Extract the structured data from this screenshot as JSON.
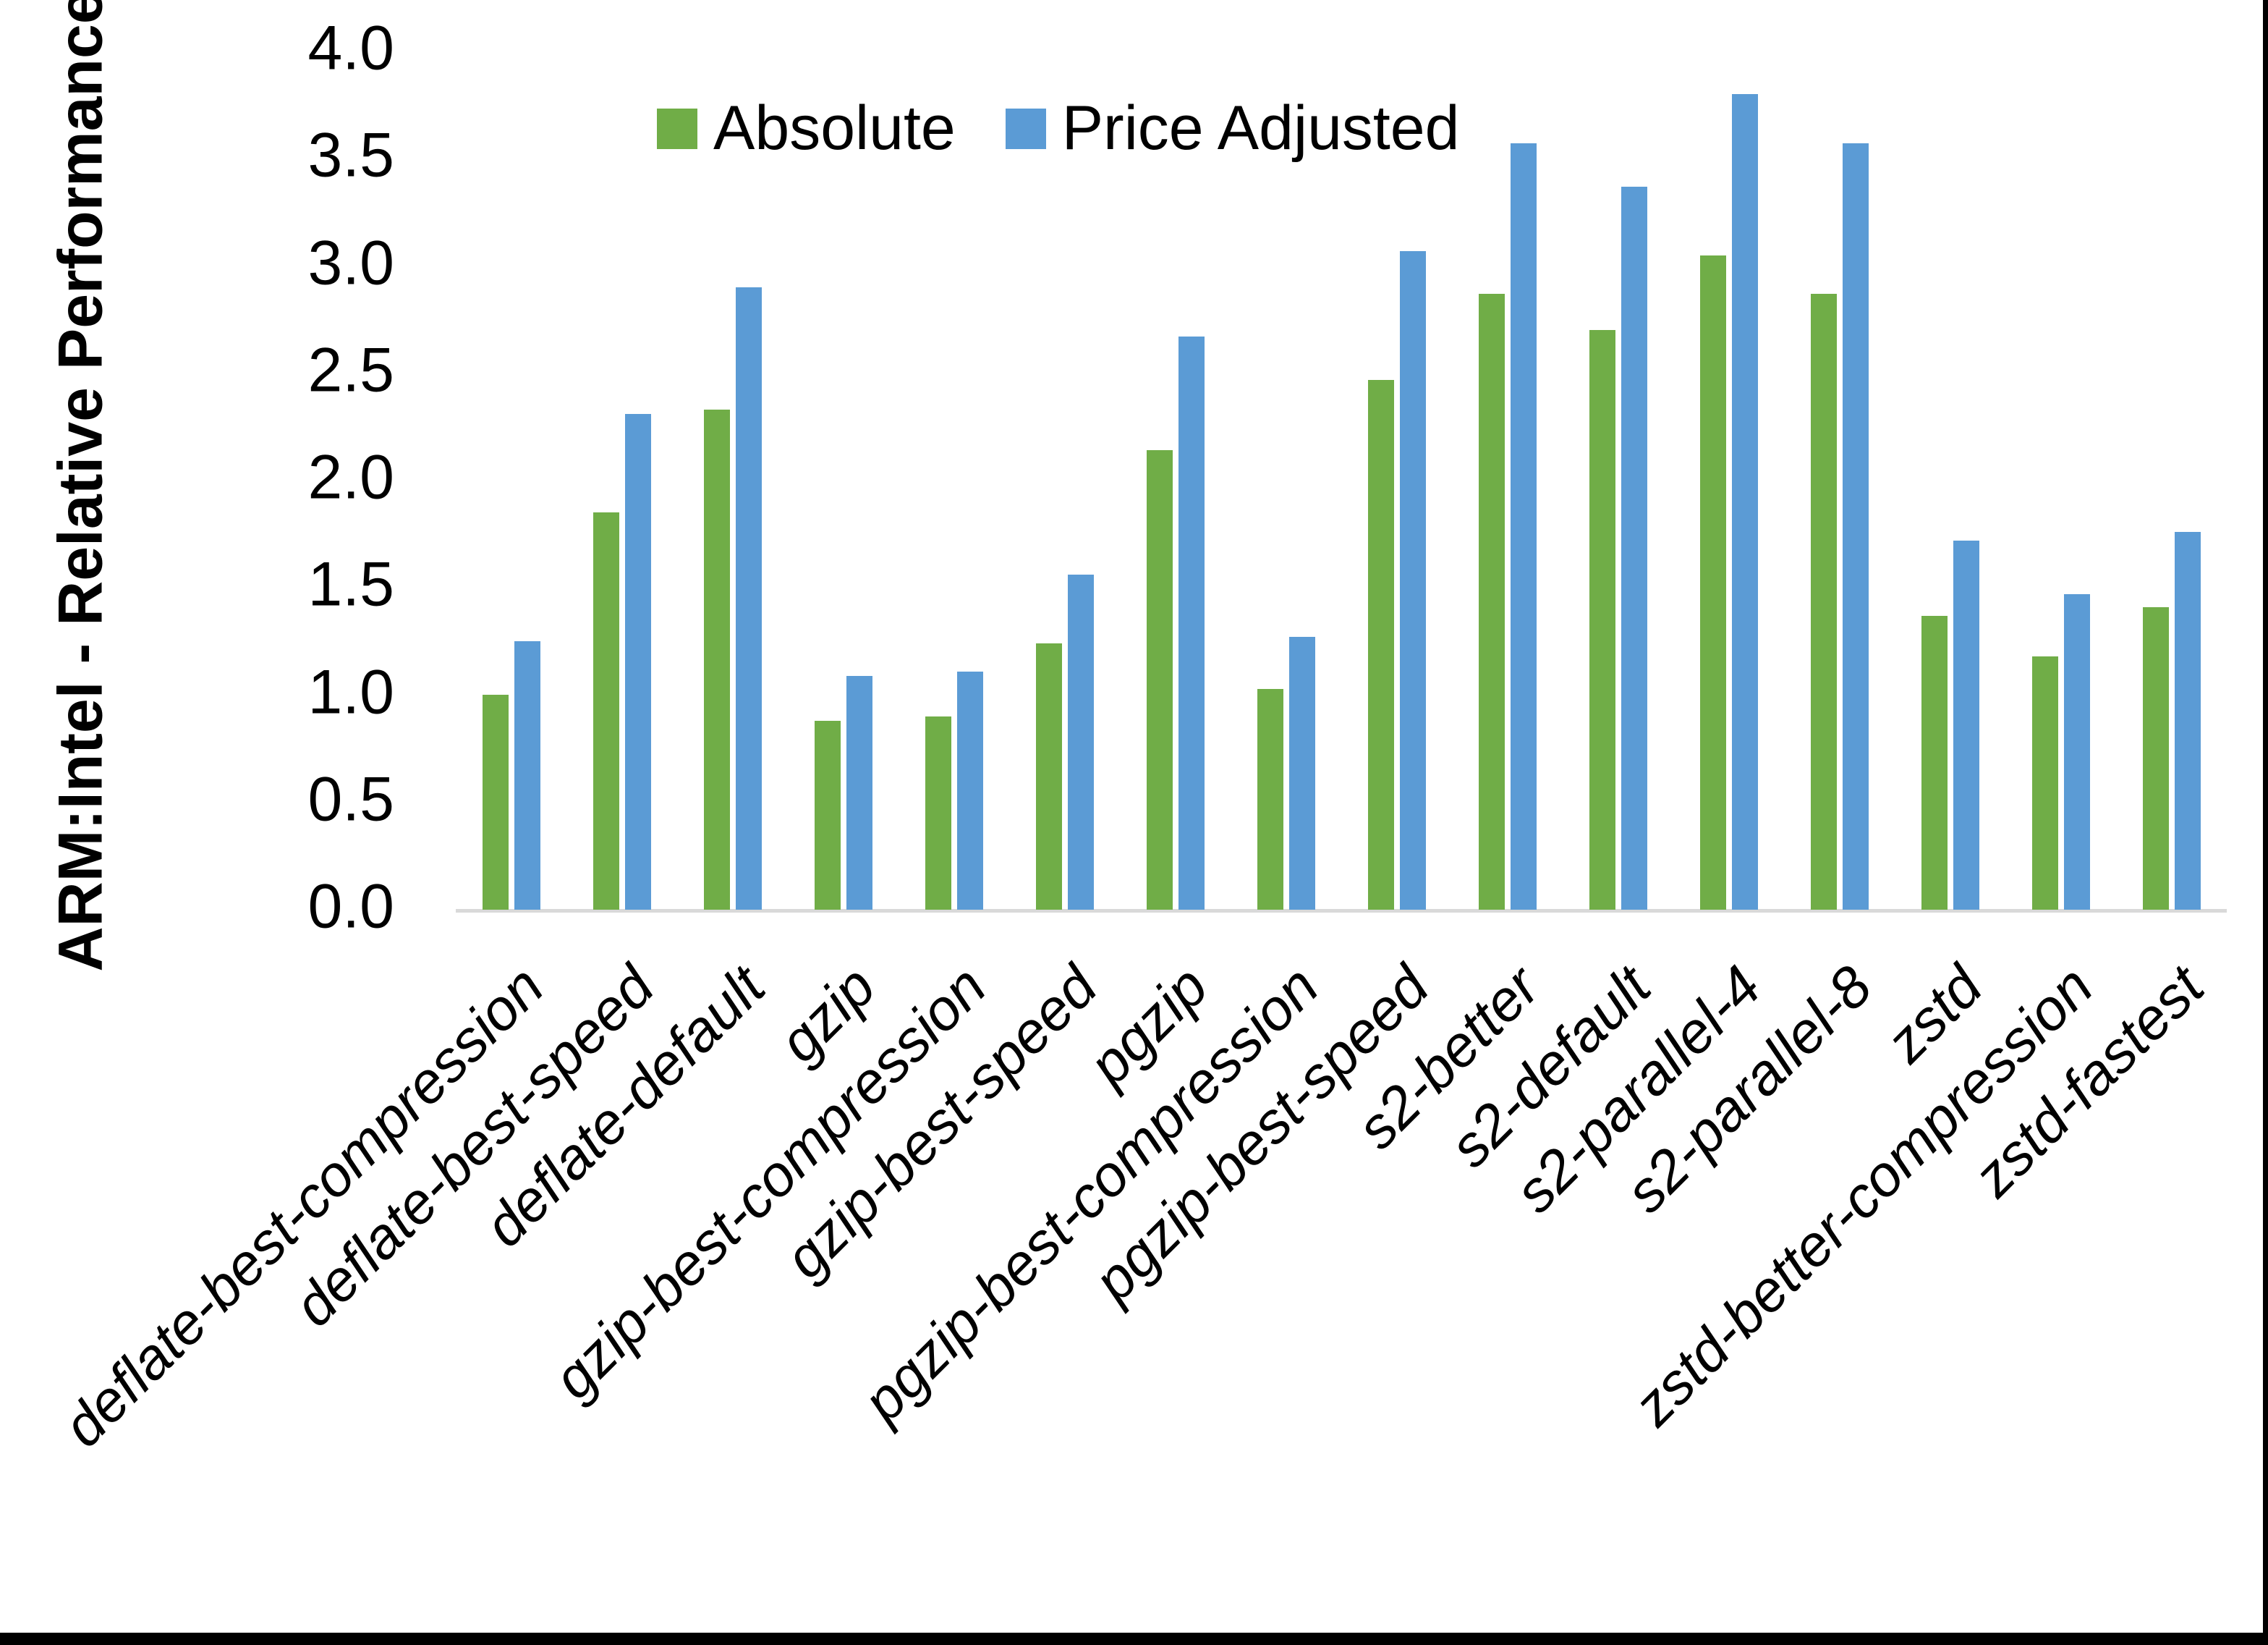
{
  "chart_data": {
    "type": "bar",
    "title": "",
    "ylabel": "ARM:Intel - Relative Performance",
    "xlabel": "",
    "ylim": [
      0.0,
      4.0
    ],
    "ytick_step": 0.5,
    "yticks": [
      "0.0",
      "0.5",
      "1.0",
      "1.5",
      "2.0",
      "2.5",
      "3.0",
      "3.5",
      "4.0"
    ],
    "grid": false,
    "legend_position": "top-center",
    "categories": [
      "deflate-best-compression",
      "deflate-best-speed",
      "deflate-default",
      "gzip",
      "gzip-best-compression",
      "gzip-best-speed",
      "pgzip",
      "pgzip-best-compression",
      "pgzip-best-speed",
      "s2-better",
      "s2-default",
      "s2-parallel-4",
      "s2-parallel-8",
      "zstd",
      "zstd-better-compression",
      "zstd-fastest"
    ],
    "series": [
      {
        "name": "Absolute",
        "color": "#70AD47",
        "values": [
          1.0,
          1.85,
          2.33,
          0.88,
          0.9,
          1.24,
          2.14,
          1.03,
          2.47,
          2.87,
          2.7,
          3.05,
          2.87,
          1.37,
          1.18,
          1.41
        ]
      },
      {
        "name": "Price Adjusted",
        "color": "#5B9BD5",
        "values": [
          1.25,
          2.31,
          2.9,
          1.09,
          1.11,
          1.56,
          2.67,
          1.27,
          3.07,
          3.57,
          3.37,
          3.8,
          3.57,
          1.72,
          1.47,
          1.76
        ]
      }
    ],
    "axis_line_color": "#D9D9D9",
    "text_color": "#000000"
  }
}
